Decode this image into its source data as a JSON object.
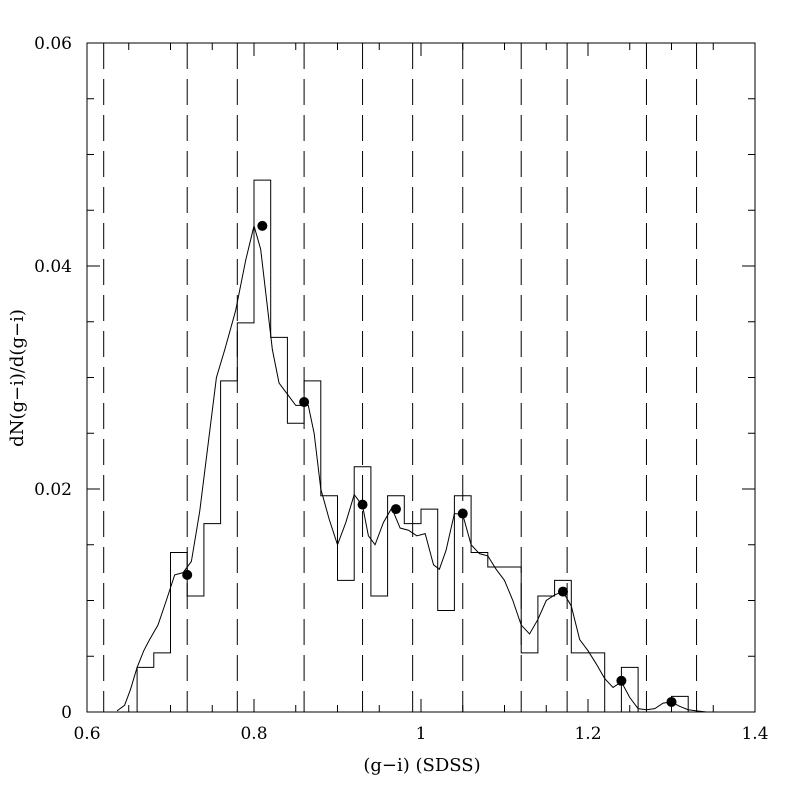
{
  "chart_data": {
    "type": "line",
    "title": "",
    "xlabel": "(g−i) (SDSS)",
    "ylabel": "dN(g−i)/d(g−i)",
    "xlim": [
      0.6,
      1.4
    ],
    "ylim": [
      0,
      0.06
    ],
    "grid": false,
    "xticks": [
      0.6,
      0.8,
      1,
      1.2,
      1.4
    ],
    "xtick_labels": [
      "0.6",
      "0.8",
      "1",
      "1.2",
      "1.4"
    ],
    "yticks": [
      0,
      0.02,
      0.04,
      0.06
    ],
    "ytick_labels": [
      "0",
      "0.02",
      "0.04",
      "0.06"
    ],
    "bin_boundaries": [
      0.62,
      0.72,
      0.78,
      0.86,
      0.93,
      0.99,
      1.05,
      1.12,
      1.175,
      1.27,
      1.33
    ],
    "histogram": {
      "edges": [
        0.66,
        0.68,
        0.7,
        0.72,
        0.74,
        0.76,
        0.78,
        0.8,
        0.82,
        0.84,
        0.86,
        0.88,
        0.9,
        0.92,
        0.94,
        0.96,
        0.98,
        1.0,
        1.02,
        1.04,
        1.06,
        1.08,
        1.1,
        1.12,
        1.14,
        1.16,
        1.18,
        1.2,
        1.22,
        1.24,
        1.26,
        1.28,
        1.3,
        1.32
      ],
      "values": [
        0.004,
        0.0053,
        0.0143,
        0.0104,
        0.0169,
        0.0297,
        0.0349,
        0.0477,
        0.0336,
        0.0259,
        0.0297,
        0.0194,
        0.0118,
        0.022,
        0.0104,
        0.0194,
        0.0169,
        0.0182,
        0.0091,
        0.0194,
        0.0143,
        0.013,
        0.013,
        0.0053,
        0.0104,
        0.0118,
        0.0053,
        0.0053,
        0,
        0.004,
        0,
        0,
        0.0014
      ]
    },
    "smoothed": {
      "x": [
        0.636,
        0.645,
        0.652,
        0.66,
        0.668,
        0.675,
        0.685,
        0.695,
        0.705,
        0.715,
        0.725,
        0.735,
        0.745,
        0.755,
        0.765,
        0.778,
        0.79,
        0.8,
        0.808,
        0.815,
        0.822,
        0.83,
        0.84,
        0.85,
        0.858,
        0.865,
        0.872,
        0.88,
        0.89,
        0.9,
        0.91,
        0.92,
        0.93,
        0.937,
        0.945,
        0.955,
        0.965,
        0.975,
        0.985,
        0.995,
        1.005,
        1.015,
        1.022,
        1.03,
        1.04,
        1.05,
        1.06,
        1.07,
        1.08,
        1.09,
        1.1,
        1.11,
        1.12,
        1.13,
        1.14,
        1.15,
        1.16,
        1.17,
        1.18,
        1.19,
        1.2,
        1.21,
        1.22,
        1.23,
        1.24,
        1.25,
        1.26,
        1.27,
        1.28,
        1.29,
        1.3,
        1.31,
        1.32,
        1.33,
        1.342
      ],
      "y": [
        0.0001,
        0.0006,
        0.002,
        0.004,
        0.0055,
        0.0065,
        0.0078,
        0.01,
        0.0123,
        0.0125,
        0.0135,
        0.018,
        0.024,
        0.03,
        0.0325,
        0.036,
        0.0405,
        0.0436,
        0.0415,
        0.037,
        0.0325,
        0.0295,
        0.0285,
        0.0275,
        0.0275,
        0.0275,
        0.025,
        0.02,
        0.0173,
        0.015,
        0.017,
        0.0195,
        0.0185,
        0.0158,
        0.015,
        0.017,
        0.0183,
        0.0165,
        0.0163,
        0.0158,
        0.016,
        0.0132,
        0.0128,
        0.0145,
        0.0178,
        0.0177,
        0.015,
        0.0142,
        0.014,
        0.0128,
        0.0118,
        0.01,
        0.0078,
        0.007,
        0.0083,
        0.01,
        0.0105,
        0.0108,
        0.0095,
        0.0065,
        0.0055,
        0.0043,
        0.003,
        0.0022,
        0.0027,
        0.0013,
        0.0003,
        0.0002,
        0.0003,
        0.0008,
        0.0009,
        0.0005,
        0.0002,
        0.0001,
        0
      ]
    },
    "points": {
      "x": [
        0.72,
        0.81,
        0.86,
        0.93,
        0.97,
        1.05,
        1.17,
        1.24,
        1.3
      ],
      "y": [
        0.0123,
        0.0436,
        0.0278,
        0.0186,
        0.0182,
        0.0178,
        0.0108,
        0.0028,
        0.0009
      ]
    }
  }
}
